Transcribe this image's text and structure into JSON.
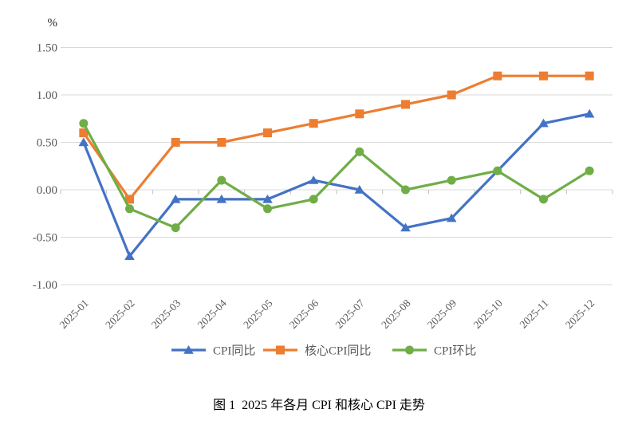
{
  "chart": {
    "unit_label": "%",
    "grid_color": "#D9D9D9",
    "tick_color": "#BFBFBF",
    "axis_label_color": "#595959",
    "unit_label_color": "#262626",
    "legend_text_color": "#595959"
  },
  "chart_data": {
    "type": "line",
    "title": "图 1  2025 年各月 CPI 和核心 CPI 走势",
    "categories": [
      "2025-01",
      "2025-02",
      "2025-03",
      "2025-04",
      "2025-05",
      "2025-06",
      "2025-07",
      "2025-08",
      "2025-09",
      "2025-10",
      "2025-11",
      "2025-12"
    ],
    "series": [
      {
        "name": "CPI同比",
        "marker": "triangle",
        "color": "#4472C4",
        "values": [
          0.5,
          -0.7,
          -0.1,
          -0.1,
          -0.1,
          0.1,
          0.0,
          -0.4,
          -0.3,
          0.2,
          0.7,
          0.8
        ]
      },
      {
        "name": "核心CPI同比",
        "marker": "square",
        "color": "#ED7D31",
        "values": [
          0.6,
          -0.1,
          0.5,
          0.5,
          0.6,
          0.7,
          0.8,
          0.9,
          1.0,
          1.2,
          1.2,
          1.2
        ]
      },
      {
        "name": "CPI环比",
        "marker": "circle",
        "color": "#70AD47",
        "values": [
          0.7,
          -0.2,
          -0.4,
          0.1,
          -0.2,
          -0.1,
          0.4,
          0.0,
          0.1,
          0.2,
          -0.1,
          0.2
        ]
      }
    ],
    "xlabel": "",
    "ylabel": "%",
    "ylim": [
      -1.0,
      1.5
    ],
    "y_ticks": [
      {
        "value": 1.5,
        "label": "1.50"
      },
      {
        "value": 1.0,
        "label": "1.00"
      },
      {
        "value": 0.5,
        "label": "0.50"
      },
      {
        "value": 0.0,
        "label": "0.00"
      },
      {
        "value": -0.5,
        "label": "-0.50"
      },
      {
        "value": -1.0,
        "label": "-1.00"
      }
    ],
    "grid": true,
    "legend_position": "bottom"
  },
  "caption": {
    "text": "图 1  2025 年各月 CPI 和核心 CPI 走势"
  }
}
